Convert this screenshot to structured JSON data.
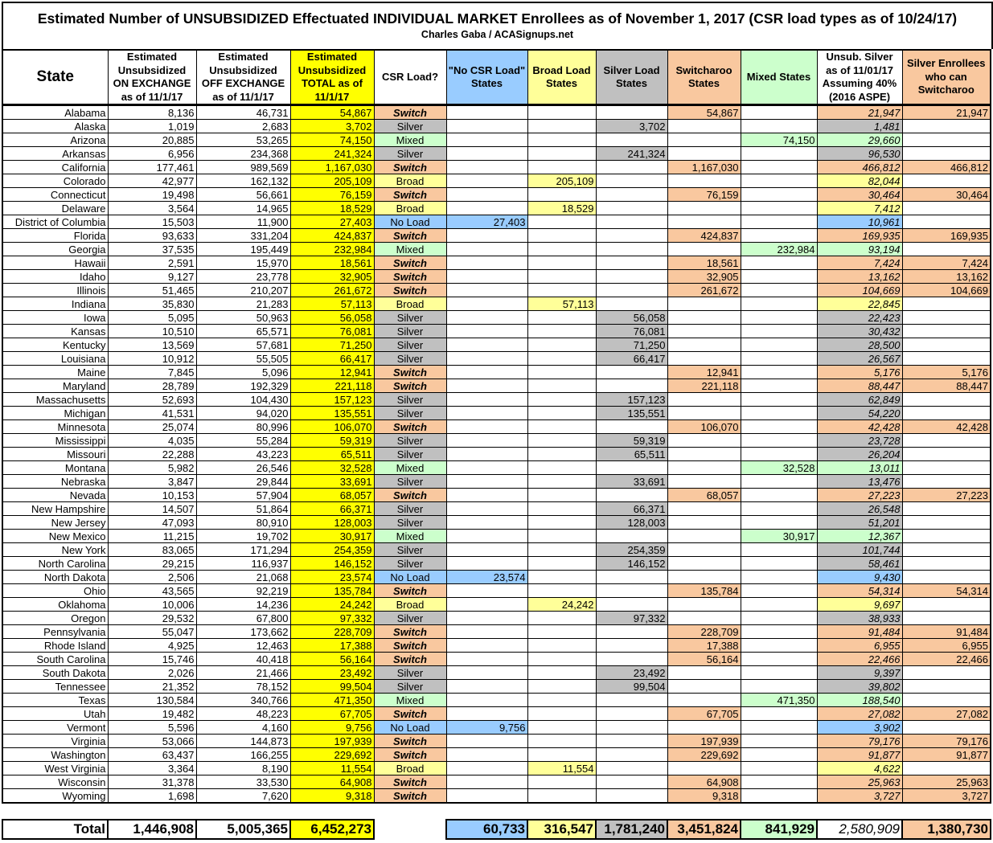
{
  "title": "Estimated Number of UNSUBSIDIZED Effectuated INDIVIDUAL MARKET Enrollees as of November 1, 2017 (CSR load types as of 10/24/17)",
  "subtitle": "Charles Gaba / ACASignups.net",
  "colors": {
    "switch": "#f9c89f",
    "silver": "#c0c0c0",
    "mixed": "#ccffcc",
    "broad": "#ffff99",
    "no_load": "#99ccff",
    "total": "#ffff00"
  },
  "headers": {
    "state": "State",
    "on_exchange": "Estimated Unsubsidized ON EXCHANGE as of 11/1/17",
    "off_exchange": "Estimated Unsubsidized OFF EXCHANGE as of 11/1/17",
    "total": "Estimated Unsubsidized TOTAL as of 11/1/17",
    "csr_load": "CSR Load?",
    "no_load": "\"No CSR Load\" States",
    "broad": "Broad Load States",
    "silver": "Silver Load States",
    "switcharoo": "Switcharoo States",
    "mixed": "Mixed States",
    "unsub_silver": "Unsub. Silver as of 11/01/17 Assuming 40% (2016 ASPE)",
    "can_switch": "Silver Enrollees who can Switcharoo"
  },
  "rows": [
    {
      "state": "Alabama",
      "on": "8,136",
      "off": "46,731",
      "total": "54,867",
      "csr": "Switch",
      "unsub_silver": "21,947",
      "can_switch": "21,947"
    },
    {
      "state": "Alaska",
      "on": "1,019",
      "off": "2,683",
      "total": "3,702",
      "csr": "Silver",
      "unsub_silver": "1,481",
      "can_switch": ""
    },
    {
      "state": "Arizona",
      "on": "20,885",
      "off": "53,265",
      "total": "74,150",
      "csr": "Mixed",
      "unsub_silver": "29,660",
      "can_switch": ""
    },
    {
      "state": "Arkansas",
      "on": "6,956",
      "off": "234,368",
      "total": "241,324",
      "csr": "Silver",
      "unsub_silver": "96,530",
      "can_switch": ""
    },
    {
      "state": "California",
      "on": "177,461",
      "off": "989,569",
      "total": "1,167,030",
      "csr": "Switch",
      "unsub_silver": "466,812",
      "can_switch": "466,812"
    },
    {
      "state": "Colorado",
      "on": "42,977",
      "off": "162,132",
      "total": "205,109",
      "csr": "Broad",
      "unsub_silver": "82,044",
      "can_switch": ""
    },
    {
      "state": "Connecticut",
      "on": "19,498",
      "off": "56,661",
      "total": "76,159",
      "csr": "Switch",
      "unsub_silver": "30,464",
      "can_switch": "30,464"
    },
    {
      "state": "Delaware",
      "on": "3,564",
      "off": "14,965",
      "total": "18,529",
      "csr": "Broad",
      "unsub_silver": "7,412",
      "can_switch": ""
    },
    {
      "state": "District of Columbia",
      "on": "15,503",
      "off": "11,900",
      "total": "27,403",
      "csr": "No Load",
      "unsub_silver": "10,961",
      "can_switch": ""
    },
    {
      "state": "Florida",
      "on": "93,633",
      "off": "331,204",
      "total": "424,837",
      "csr": "Switch",
      "unsub_silver": "169,935",
      "can_switch": "169,935"
    },
    {
      "state": "Georgia",
      "on": "37,535",
      "off": "195,449",
      "total": "232,984",
      "csr": "Mixed",
      "unsub_silver": "93,194",
      "can_switch": ""
    },
    {
      "state": "Hawaii",
      "on": "2,591",
      "off": "15,970",
      "total": "18,561",
      "csr": "Switch",
      "unsub_silver": "7,424",
      "can_switch": "7,424"
    },
    {
      "state": "Idaho",
      "on": "9,127",
      "off": "23,778",
      "total": "32,905",
      "csr": "Switch",
      "unsub_silver": "13,162",
      "can_switch": "13,162"
    },
    {
      "state": "Illinois",
      "on": "51,465",
      "off": "210,207",
      "total": "261,672",
      "csr": "Switch",
      "unsub_silver": "104,669",
      "can_switch": "104,669"
    },
    {
      "state": "Indiana",
      "on": "35,830",
      "off": "21,283",
      "total": "57,113",
      "csr": "Broad",
      "unsub_silver": "22,845",
      "can_switch": ""
    },
    {
      "state": "Iowa",
      "on": "5,095",
      "off": "50,963",
      "total": "56,058",
      "csr": "Silver",
      "unsub_silver": "22,423",
      "can_switch": ""
    },
    {
      "state": "Kansas",
      "on": "10,510",
      "off": "65,571",
      "total": "76,081",
      "csr": "Silver",
      "unsub_silver": "30,432",
      "can_switch": ""
    },
    {
      "state": "Kentucky",
      "on": "13,569",
      "off": "57,681",
      "total": "71,250",
      "csr": "Silver",
      "unsub_silver": "28,500",
      "can_switch": ""
    },
    {
      "state": "Louisiana",
      "on": "10,912",
      "off": "55,505",
      "total": "66,417",
      "csr": "Silver",
      "unsub_silver": "26,567",
      "can_switch": ""
    },
    {
      "state": "Maine",
      "on": "7,845",
      "off": "5,096",
      "total": "12,941",
      "csr": "Switch",
      "unsub_silver": "5,176",
      "can_switch": "5,176"
    },
    {
      "state": "Maryland",
      "on": "28,789",
      "off": "192,329",
      "total": "221,118",
      "csr": "Switch",
      "unsub_silver": "88,447",
      "can_switch": "88,447"
    },
    {
      "state": "Massachusetts",
      "on": "52,693",
      "off": "104,430",
      "total": "157,123",
      "csr": "Silver",
      "unsub_silver": "62,849",
      "can_switch": ""
    },
    {
      "state": "Michigan",
      "on": "41,531",
      "off": "94,020",
      "total": "135,551",
      "csr": "Silver",
      "unsub_silver": "54,220",
      "can_switch": ""
    },
    {
      "state": "Minnesota",
      "on": "25,074",
      "off": "80,996",
      "total": "106,070",
      "csr": "Switch",
      "unsub_silver": "42,428",
      "can_switch": "42,428"
    },
    {
      "state": "Mississippi",
      "on": "4,035",
      "off": "55,284",
      "total": "59,319",
      "csr": "Silver",
      "unsub_silver": "23,728",
      "can_switch": ""
    },
    {
      "state": "Missouri",
      "on": "22,288",
      "off": "43,223",
      "total": "65,511",
      "csr": "Silver",
      "unsub_silver": "26,204",
      "can_switch": ""
    },
    {
      "state": "Montana",
      "on": "5,982",
      "off": "26,546",
      "total": "32,528",
      "csr": "Mixed",
      "unsub_silver": "13,011",
      "can_switch": ""
    },
    {
      "state": "Nebraska",
      "on": "3,847",
      "off": "29,844",
      "total": "33,691",
      "csr": "Silver",
      "unsub_silver": "13,476",
      "can_switch": ""
    },
    {
      "state": "Nevada",
      "on": "10,153",
      "off": "57,904",
      "total": "68,057",
      "csr": "Switch",
      "unsub_silver": "27,223",
      "can_switch": "27,223"
    },
    {
      "state": "New Hampshire",
      "on": "14,507",
      "off": "51,864",
      "total": "66,371",
      "csr": "Silver",
      "unsub_silver": "26,548",
      "can_switch": ""
    },
    {
      "state": "New Jersey",
      "on": "47,093",
      "off": "80,910",
      "total": "128,003",
      "csr": "Silver",
      "unsub_silver": "51,201",
      "can_switch": ""
    },
    {
      "state": "New Mexico",
      "on": "11,215",
      "off": "19,702",
      "total": "30,917",
      "csr": "Mixed",
      "unsub_silver": "12,367",
      "can_switch": ""
    },
    {
      "state": "New York",
      "on": "83,065",
      "off": "171,294",
      "total": "254,359",
      "csr": "Silver",
      "unsub_silver": "101,744",
      "can_switch": ""
    },
    {
      "state": "North Carolina",
      "on": "29,215",
      "off": "116,937",
      "total": "146,152",
      "csr": "Silver",
      "unsub_silver": "58,461",
      "can_switch": ""
    },
    {
      "state": "North Dakota",
      "on": "2,506",
      "off": "21,068",
      "total": "23,574",
      "csr": "No Load",
      "unsub_silver": "9,430",
      "can_switch": ""
    },
    {
      "state": "Ohio",
      "on": "43,565",
      "off": "92,219",
      "total": "135,784",
      "csr": "Switch",
      "unsub_silver": "54,314",
      "can_switch": "54,314"
    },
    {
      "state": "Oklahoma",
      "on": "10,006",
      "off": "14,236",
      "total": "24,242",
      "csr": "Broad",
      "unsub_silver": "9,697",
      "can_switch": ""
    },
    {
      "state": "Oregon",
      "on": "29,532",
      "off": "67,800",
      "total": "97,332",
      "csr": "Silver",
      "unsub_silver": "38,933",
      "can_switch": ""
    },
    {
      "state": "Pennsylvania",
      "on": "55,047",
      "off": "173,662",
      "total": "228,709",
      "csr": "Switch",
      "unsub_silver": "91,484",
      "can_switch": "91,484"
    },
    {
      "state": "Rhode Island",
      "on": "4,925",
      "off": "12,463",
      "total": "17,388",
      "csr": "Switch",
      "unsub_silver": "6,955",
      "can_switch": "6,955"
    },
    {
      "state": "South Carolina",
      "on": "15,746",
      "off": "40,418",
      "total": "56,164",
      "csr": "Switch",
      "unsub_silver": "22,466",
      "can_switch": "22,466"
    },
    {
      "state": "South Dakota",
      "on": "2,026",
      "off": "21,466",
      "total": "23,492",
      "csr": "Silver",
      "unsub_silver": "9,397",
      "can_switch": ""
    },
    {
      "state": "Tennessee",
      "on": "21,352",
      "off": "78,152",
      "total": "99,504",
      "csr": "Silver",
      "unsub_silver": "39,802",
      "can_switch": ""
    },
    {
      "state": "Texas",
      "on": "130,584",
      "off": "340,766",
      "total": "471,350",
      "csr": "Mixed",
      "unsub_silver": "188,540",
      "can_switch": ""
    },
    {
      "state": "Utah",
      "on": "19,482",
      "off": "48,223",
      "total": "67,705",
      "csr": "Switch",
      "unsub_silver": "27,082",
      "can_switch": "27,082"
    },
    {
      "state": "Vermont",
      "on": "5,596",
      "off": "4,160",
      "total": "9,756",
      "csr": "No Load",
      "unsub_silver": "3,902",
      "can_switch": ""
    },
    {
      "state": "Virginia",
      "on": "53,066",
      "off": "144,873",
      "total": "197,939",
      "csr": "Switch",
      "unsub_silver": "79,176",
      "can_switch": "79,176"
    },
    {
      "state": "Washington",
      "on": "63,437",
      "off": "166,255",
      "total": "229,692",
      "csr": "Switch",
      "unsub_silver": "91,877",
      "can_switch": "91,877"
    },
    {
      "state": "West Virginia",
      "on": "3,364",
      "off": "8,190",
      "total": "11,554",
      "csr": "Broad",
      "unsub_silver": "4,622",
      "can_switch": ""
    },
    {
      "state": "Wisconsin",
      "on": "31,378",
      "off": "33,530",
      "total": "64,908",
      "csr": "Switch",
      "unsub_silver": "25,963",
      "can_switch": "25,963"
    },
    {
      "state": "Wyoming",
      "on": "1,698",
      "off": "7,620",
      "total": "9,318",
      "csr": "Switch",
      "unsub_silver": "3,727",
      "can_switch": "3,727"
    }
  ],
  "totals": {
    "label": "Total",
    "on": "1,446,908",
    "off": "5,005,365",
    "total": "6,452,273",
    "no_load": "60,733",
    "broad": "316,547",
    "silver": "1,781,240",
    "switcharoo": "3,451,824",
    "mixed": "841,929",
    "unsub_silver": "2,580,909",
    "can_switch": "1,380,730"
  }
}
